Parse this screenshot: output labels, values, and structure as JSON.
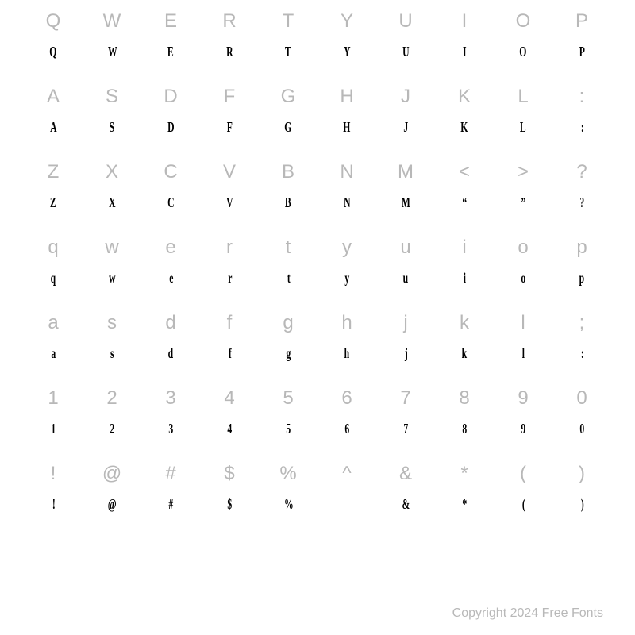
{
  "grid": {
    "rows": [
      {
        "keys": [
          "Q",
          "W",
          "E",
          "R",
          "T",
          "Y",
          "U",
          "I",
          "O",
          "P"
        ],
        "glyphs": [
          "Q",
          "W",
          "E",
          "R",
          "T",
          "Y",
          "U",
          "I",
          "O",
          "P"
        ]
      },
      {
        "keys": [
          "A",
          "S",
          "D",
          "F",
          "G",
          "H",
          "J",
          "K",
          "L",
          ":"
        ],
        "glyphs": [
          "A",
          "S",
          "D",
          "F",
          "G",
          "H",
          "J",
          "K",
          "L",
          ":"
        ]
      },
      {
        "keys": [
          "Z",
          "X",
          "C",
          "V",
          "B",
          "N",
          "M",
          "<",
          ">",
          "?"
        ],
        "glyphs": [
          "Z",
          "X",
          "C",
          "V",
          "B",
          "N",
          "M",
          "“",
          "”",
          "?"
        ]
      },
      {
        "keys": [
          "q",
          "w",
          "e",
          "r",
          "t",
          "y",
          "u",
          "i",
          "o",
          "p"
        ],
        "glyphs": [
          "q",
          "w",
          "e",
          "r",
          "t",
          "y",
          "u",
          "i",
          "o",
          "p"
        ]
      },
      {
        "keys": [
          "a",
          "s",
          "d",
          "f",
          "g",
          "h",
          "j",
          "k",
          "l",
          ";"
        ],
        "glyphs": [
          "a",
          "s",
          "d",
          "f",
          "g",
          "h",
          "j",
          "k",
          "l",
          ":"
        ]
      },
      {
        "keys": [
          "1",
          "2",
          "3",
          "4",
          "5",
          "6",
          "7",
          "8",
          "9",
          "0"
        ],
        "glyphs": [
          "1",
          "2",
          "3",
          "4",
          "5",
          "6",
          "7",
          "8",
          "9",
          "0"
        ]
      },
      {
        "keys": [
          "!",
          "@",
          "#",
          "$",
          "%",
          "^",
          "&",
          "*",
          "(",
          ")"
        ],
        "glyphs": [
          "!",
          "@",
          "#",
          "$",
          "%",
          "",
          "&",
          "*",
          "(",
          ")"
        ]
      }
    ],
    "columns": 10,
    "key_color": "#b8b8b8",
    "glyph_color": "#000000",
    "key_fontsize": 24,
    "glyph_fontsize": 18,
    "background_color": "#ffffff"
  },
  "copyright": "Copyright 2024 Free Fonts"
}
